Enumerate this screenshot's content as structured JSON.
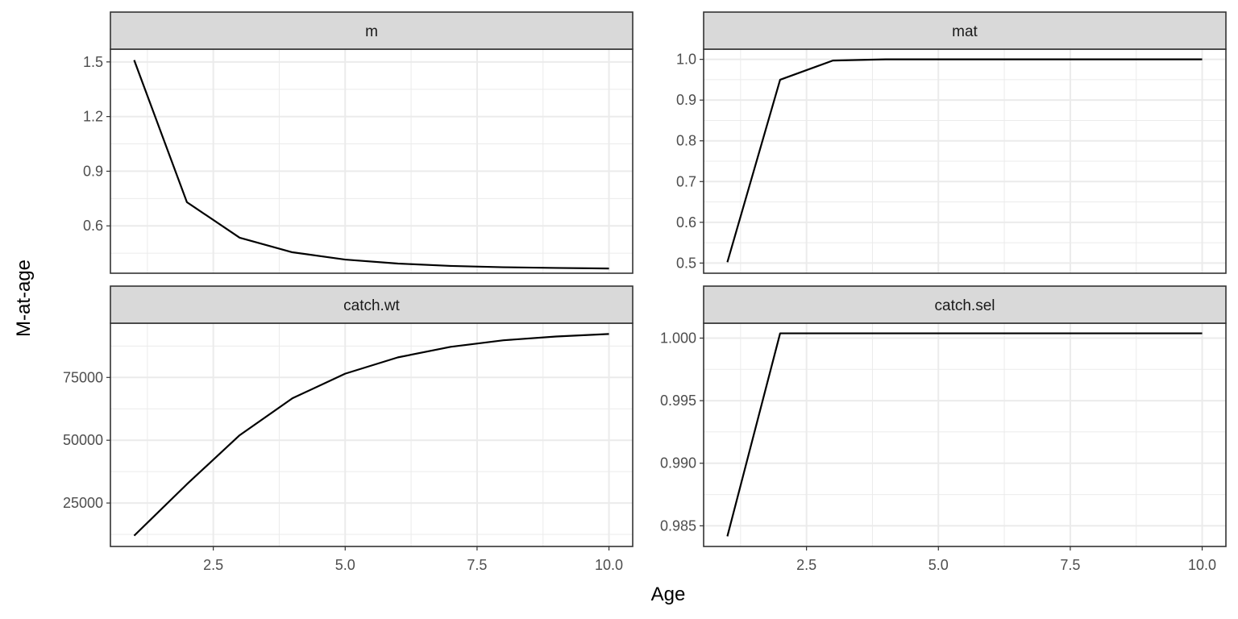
{
  "chart_data": {
    "type": "line",
    "layout": "facet-grid-2x2",
    "xlabel": "Age",
    "ylabel": "M-at-age",
    "x_ticks": [
      2.5,
      5.0,
      7.5,
      10.0
    ],
    "x_tick_labels": [
      "2.5",
      "5.0",
      "7.5",
      "10.0"
    ],
    "xlim": [
      0.55,
      10.45
    ],
    "line_color": "#000000",
    "strip_fill": "#d9d9d9",
    "grid_color": "#ebebeb",
    "panels": [
      {
        "title": "m",
        "x": [
          1,
          2,
          3,
          4,
          5,
          6,
          7,
          8,
          9,
          10
        ],
        "y": [
          1.51,
          0.73,
          0.535,
          0.455,
          0.415,
          0.393,
          0.38,
          0.373,
          0.369,
          0.366
        ],
        "ylim": [
          0.34,
          1.57
        ],
        "y_ticks": [
          0.6,
          0.9,
          1.2,
          1.5
        ],
        "y_tick_labels": [
          "0.6",
          "0.9",
          "1.2",
          "1.5"
        ]
      },
      {
        "title": "mat",
        "x": [
          1,
          2,
          3,
          4,
          5,
          6,
          7,
          8,
          9,
          10
        ],
        "y": [
          0.502,
          0.95,
          0.997,
          1.0,
          1.0,
          1.0,
          1.0,
          1.0,
          1.0,
          1.0
        ],
        "ylim": [
          0.475,
          1.025
        ],
        "y_ticks": [
          0.5,
          0.6,
          0.7,
          0.8,
          0.9,
          1.0
        ],
        "y_tick_labels": [
          "0.5",
          "0.6",
          "0.7",
          "0.8",
          "0.9",
          "1.0"
        ]
      },
      {
        "title": "catch.wt",
        "x": [
          1,
          2,
          3,
          4,
          5,
          6,
          7,
          8,
          9,
          10
        ],
        "y": [
          12000,
          32500,
          52000,
          66700,
          76500,
          83000,
          87200,
          89800,
          91300,
          92300
        ],
        "ylim": [
          7700,
          96600
        ],
        "y_ticks": [
          25000,
          50000,
          75000
        ],
        "y_tick_labels": [
          "25000",
          "50000",
          "75000"
        ]
      },
      {
        "title": "catch.sel",
        "x": [
          1,
          2,
          3,
          4,
          5,
          6,
          7,
          8,
          9,
          10
        ],
        "y": [
          0.98416,
          1.00038,
          1.00038,
          1.00038,
          1.00038,
          1.00038,
          1.00038,
          1.00038,
          1.00038,
          1.00038
        ],
        "ylim": [
          0.98335,
          1.00119
        ],
        "y_ticks": [
          0.985,
          0.99,
          0.995,
          1.0
        ],
        "y_tick_labels": [
          "0.985",
          "0.990",
          "0.995",
          "1.000"
        ]
      }
    ]
  }
}
